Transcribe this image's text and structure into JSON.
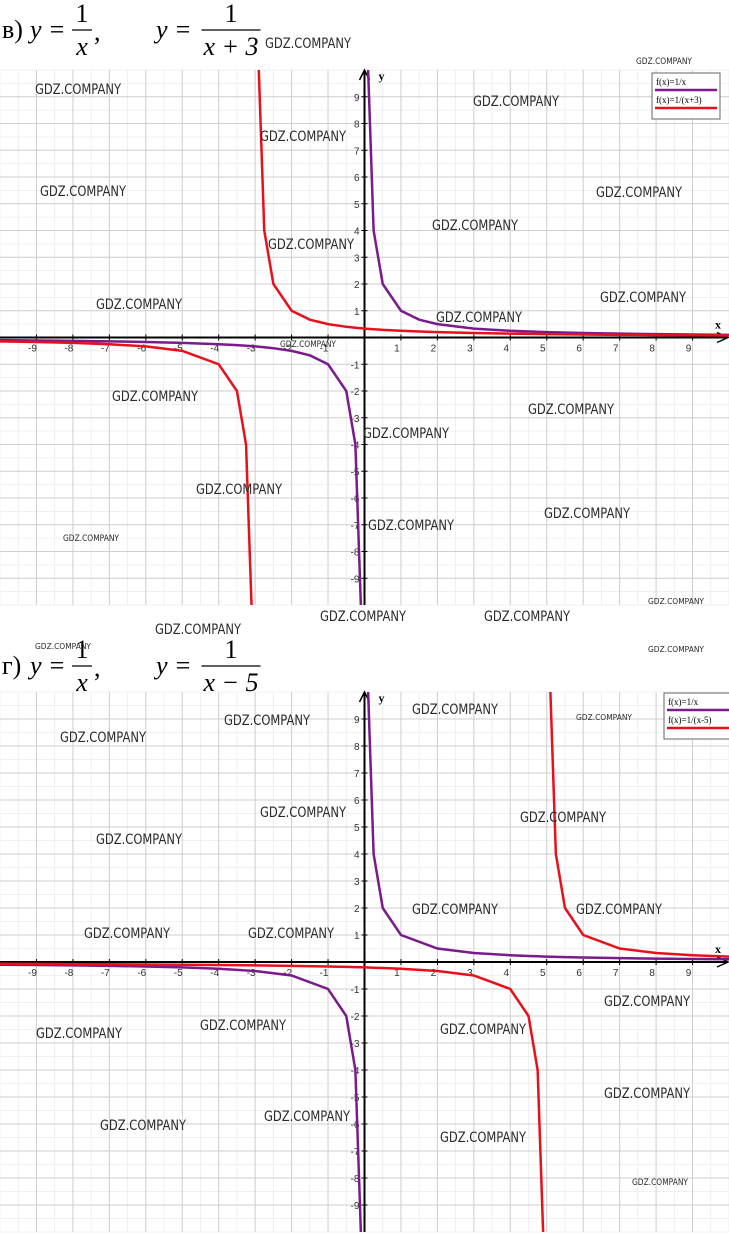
{
  "watermark": "GDZ.COMPANY",
  "chart_data": [
    {
      "type": "line",
      "heading": {
        "label": "в)",
        "formulas": [
          {
            "lhs": "y =",
            "numerator": "1",
            "denominator": "x",
            "separator": ","
          },
          {
            "lhs": "y =",
            "numerator": "1",
            "denominator": "x + 3"
          }
        ]
      },
      "x_label": "x",
      "y_label": "y",
      "x": [
        -10,
        -9,
        -8,
        -7,
        -6,
        -5,
        -4,
        -3.5,
        -3.25,
        -3.1,
        -3,
        -2.9,
        -2.75,
        -2.5,
        -2,
        -1.5,
        -1,
        -0.5,
        -0.25,
        -0.1,
        0,
        0.1,
        0.25,
        0.5,
        1,
        1.5,
        2,
        3,
        4,
        5,
        6,
        7,
        8,
        9,
        10
      ],
      "series": [
        {
          "name": "f(x)=1/x",
          "color": "#7a1a8c",
          "values": [
            -0.1,
            -0.111,
            -0.125,
            -0.143,
            -0.167,
            -0.2,
            -0.25,
            -0.286,
            -0.308,
            -0.323,
            -0.333,
            -0.345,
            -0.364,
            -0.4,
            -0.5,
            -0.667,
            -1,
            -2,
            -4,
            -10,
            null,
            10,
            4,
            2,
            1,
            0.667,
            0.5,
            0.333,
            0.25,
            0.2,
            0.167,
            0.143,
            0.125,
            0.111,
            0.1
          ]
        },
        {
          "name": "f(x)=1/(x+3)",
          "color": "#e8101a",
          "values": [
            -0.143,
            -0.167,
            -0.2,
            -0.25,
            -0.333,
            -0.5,
            -1,
            -2,
            -4,
            -10,
            null,
            10,
            4,
            2,
            1,
            0.667,
            0.5,
            0.4,
            0.364,
            0.345,
            0.333,
            0.323,
            0.308,
            0.286,
            0.25,
            0.222,
            0.2,
            0.167,
            0.143,
            0.125,
            0.111,
            0.1,
            0.091,
            0.083,
            0.077
          ]
        }
      ],
      "xlim": [
        -10,
        10
      ],
      "ylim": [
        -10,
        10
      ],
      "xticks": [
        -9,
        -8,
        -7,
        -6,
        -5,
        -4,
        -3,
        -2,
        -1,
        1,
        2,
        3,
        4,
        5,
        6,
        7,
        8,
        9
      ],
      "yticks": [
        -9,
        -8,
        -7,
        -6,
        -5,
        -4,
        -3,
        -2,
        -1,
        1,
        2,
        3,
        4,
        5,
        6,
        7,
        8,
        9
      ],
      "grid": true,
      "legend": "upper right"
    },
    {
      "type": "line",
      "heading": {
        "label": "г)",
        "formulas": [
          {
            "lhs": "y =",
            "numerator": "1",
            "denominator": "x",
            "separator": ","
          },
          {
            "lhs": "y =",
            "numerator": "1",
            "denominator": "x − 5"
          }
        ]
      },
      "x_label": "x",
      "y_label": "y",
      "x": [
        -10,
        -9,
        -8,
        -7,
        -6,
        -5,
        -4,
        -3,
        -2,
        -1,
        -0.5,
        -0.25,
        -0.1,
        0,
        0.1,
        0.25,
        0.5,
        1,
        2,
        3,
        4,
        4.5,
        4.75,
        4.9,
        5,
        5.1,
        5.25,
        5.5,
        6,
        7,
        8,
        9,
        10
      ],
      "series": [
        {
          "name": "f(x)=1/x",
          "color": "#7a1a8c",
          "values": [
            -0.1,
            -0.111,
            -0.125,
            -0.143,
            -0.167,
            -0.2,
            -0.25,
            -0.333,
            -0.5,
            -1,
            -2,
            -4,
            -10,
            null,
            10,
            4,
            2,
            1,
            0.5,
            0.333,
            0.25,
            0.222,
            0.211,
            0.204,
            0.2,
            0.196,
            0.19,
            0.182,
            0.167,
            0.143,
            0.125,
            0.111,
            0.1
          ]
        },
        {
          "name": "f(x)=1/(x-5)",
          "color": "#e8101a",
          "values": [
            -0.067,
            -0.071,
            -0.077,
            -0.083,
            -0.091,
            -0.1,
            -0.111,
            -0.125,
            -0.143,
            -0.167,
            -0.182,
            -0.19,
            -0.196,
            -0.2,
            -0.204,
            -0.211,
            -0.222,
            -0.25,
            -0.333,
            -0.5,
            -1,
            -2,
            -4,
            -10,
            null,
            10,
            4,
            2,
            1,
            0.5,
            0.333,
            0.25,
            0.2
          ]
        }
      ],
      "xlim": [
        -10,
        10
      ],
      "ylim": [
        -10,
        10
      ],
      "xticks": [
        -9,
        -8,
        -7,
        -6,
        -5,
        -4,
        -3,
        -2,
        -1,
        1,
        2,
        3,
        4,
        5,
        6,
        7,
        8,
        9
      ],
      "yticks": [
        -9,
        -8,
        -7,
        -6,
        -5,
        -4,
        -3,
        -2,
        -1,
        1,
        2,
        3,
        4,
        5,
        6,
        7,
        8,
        9
      ],
      "grid": true,
      "legend": "upper right"
    }
  ]
}
